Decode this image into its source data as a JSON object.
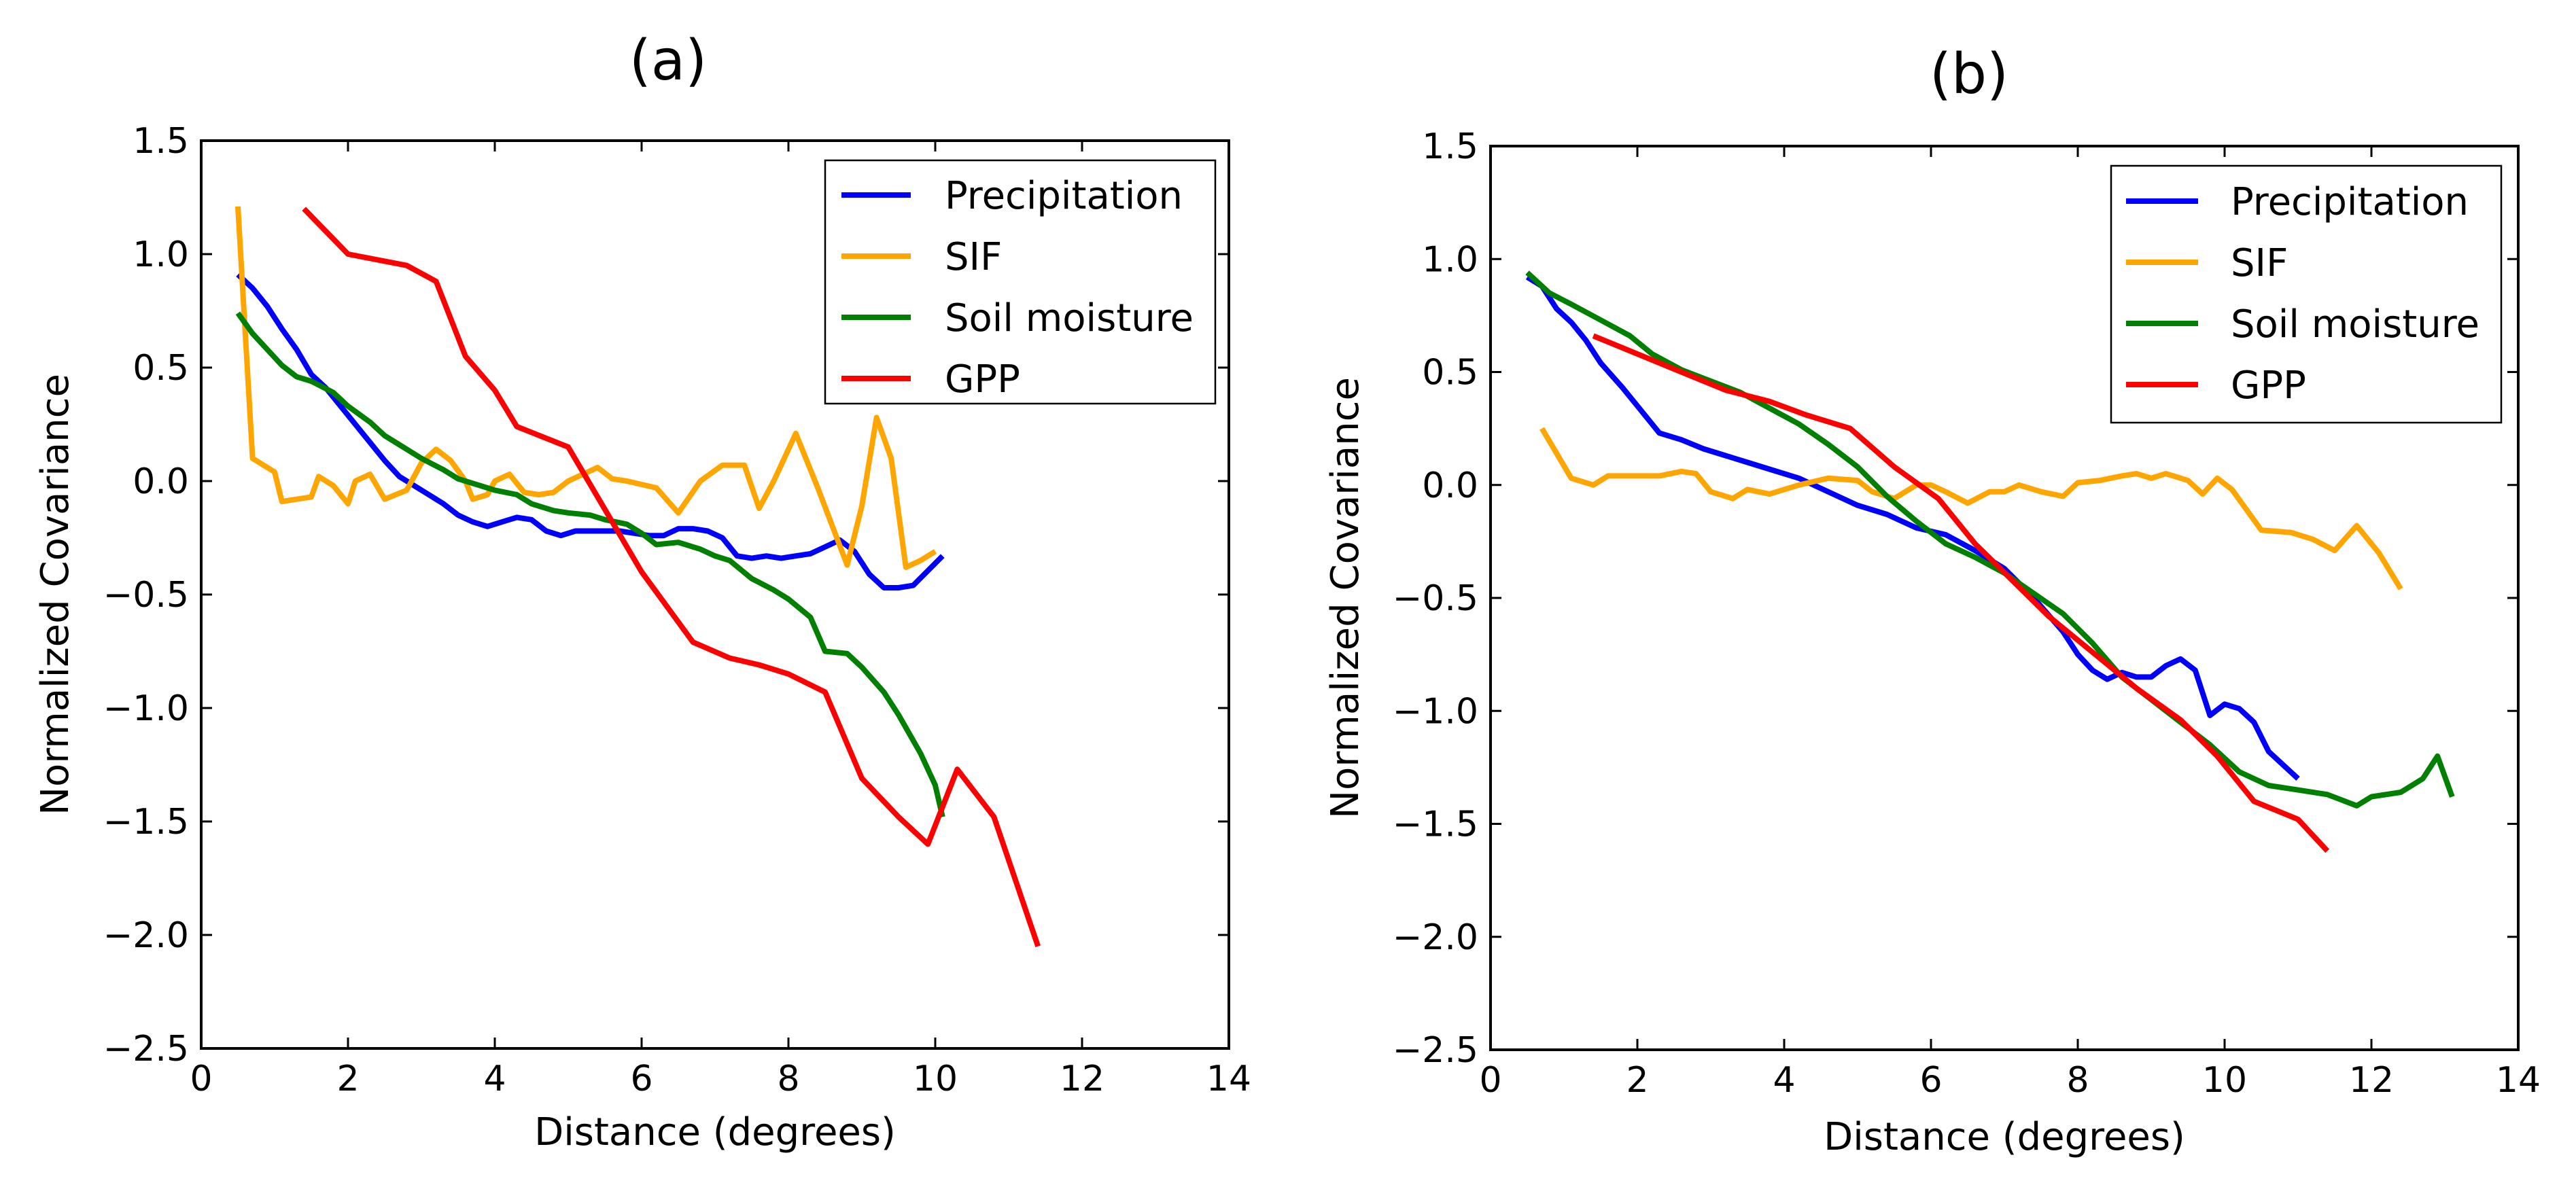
{
  "chart_data": [
    {
      "type": "line",
      "title": "(a)",
      "xlabel": "Distance (degrees)",
      "ylabel": "Normalized Covariance",
      "xlim": [
        0,
        14
      ],
      "ylim": [
        -2.5,
        1.5
      ],
      "xticks": [
        0,
        2,
        4,
        6,
        8,
        10,
        12,
        14
      ],
      "xtick_labels": [
        "0",
        "2",
        "4",
        "6",
        "8",
        "10",
        "12",
        "14"
      ],
      "yticks": [
        -2.5,
        -2.0,
        -1.5,
        -1.0,
        -0.5,
        0.0,
        0.5,
        1.0,
        1.5
      ],
      "ytick_labels": [
        "−2.5",
        "−2.0",
        "−1.5",
        "−1.0",
        "−0.5",
        "0.0",
        "0.5",
        "1.0",
        "1.5"
      ],
      "legend_position": "top-right",
      "series": [
        {
          "name": "Precipitation",
          "color": "#0000ff",
          "x": [
            0.5,
            0.7,
            0.9,
            1.1,
            1.3,
            1.5,
            1.7,
            1.9,
            2.1,
            2.3,
            2.5,
            2.7,
            2.9,
            3.1,
            3.3,
            3.5,
            3.7,
            3.9,
            4.1,
            4.3,
            4.5,
            4.7,
            4.9,
            5.1,
            5.3,
            5.5,
            5.7,
            5.9,
            6.1,
            6.3,
            6.5,
            6.7,
            6.9,
            7.1,
            7.3,
            7.5,
            7.7,
            7.9,
            8.1,
            8.3,
            8.5,
            8.7,
            8.9,
            9.1,
            9.3,
            9.5,
            9.7,
            10.1
          ],
          "y": [
            0.91,
            0.85,
            0.77,
            0.67,
            0.58,
            0.47,
            0.41,
            0.33,
            0.25,
            0.17,
            0.09,
            0.02,
            -0.02,
            -0.06,
            -0.1,
            -0.15,
            -0.18,
            -0.2,
            -0.18,
            -0.16,
            -0.17,
            -0.22,
            -0.24,
            -0.22,
            -0.22,
            -0.22,
            -0.22,
            -0.23,
            -0.24,
            -0.24,
            -0.21,
            -0.21,
            -0.22,
            -0.25,
            -0.33,
            -0.34,
            -0.33,
            -0.34,
            -0.33,
            -0.32,
            -0.29,
            -0.26,
            -0.31,
            -0.41,
            -0.47,
            -0.47,
            -0.46,
            -0.33
          ]
        },
        {
          "name": "SIF",
          "color": "#ffa500",
          "x": [
            0.5,
            0.7,
            1.0,
            1.1,
            1.3,
            1.5,
            1.6,
            1.8,
            2.0,
            2.1,
            2.3,
            2.5,
            2.8,
            3.0,
            3.2,
            3.4,
            3.6,
            3.7,
            3.9,
            4.0,
            4.2,
            4.4,
            4.6,
            4.8,
            5.0,
            5.2,
            5.4,
            5.6,
            5.8,
            6.2,
            6.5,
            6.8,
            7.1,
            7.4,
            7.6,
            7.8,
            8.1,
            8.4,
            8.6,
            8.8,
            9.0,
            9.2,
            9.4,
            9.6,
            9.8,
            10.0
          ],
          "y": [
            1.21,
            0.1,
            0.04,
            -0.09,
            -0.08,
            -0.07,
            0.02,
            -0.02,
            -0.1,
            0.0,
            0.03,
            -0.08,
            -0.04,
            0.08,
            0.14,
            0.09,
            0.0,
            -0.08,
            -0.06,
            0.0,
            0.03,
            -0.05,
            -0.06,
            -0.05,
            0.0,
            0.03,
            0.06,
            0.01,
            0.0,
            -0.03,
            -0.14,
            0.0,
            0.07,
            0.07,
            -0.12,
            0.0,
            0.21,
            -0.03,
            -0.2,
            -0.37,
            -0.11,
            0.28,
            0.1,
            -0.38,
            -0.35,
            -0.31
          ]
        },
        {
          "name": "Soil moisture",
          "color": "#008000",
          "x": [
            0.5,
            0.7,
            0.9,
            1.1,
            1.3,
            1.5,
            1.8,
            2.0,
            2.3,
            2.5,
            2.8,
            3.0,
            3.3,
            3.5,
            3.8,
            4.0,
            4.3,
            4.5,
            4.8,
            5.0,
            5.3,
            5.5,
            5.8,
            6.0,
            6.2,
            6.5,
            6.8,
            7.0,
            7.2,
            7.5,
            7.8,
            8.0,
            8.3,
            8.5,
            8.8,
            9.0,
            9.3,
            9.5,
            9.8,
            10.0,
            10.1
          ],
          "y": [
            0.74,
            0.65,
            0.58,
            0.51,
            0.46,
            0.44,
            0.39,
            0.33,
            0.26,
            0.2,
            0.14,
            0.1,
            0.05,
            0.01,
            -0.02,
            -0.04,
            -0.06,
            -0.1,
            -0.13,
            -0.14,
            -0.15,
            -0.17,
            -0.19,
            -0.23,
            -0.28,
            -0.27,
            -0.3,
            -0.33,
            -0.35,
            -0.43,
            -0.48,
            -0.52,
            -0.6,
            -0.75,
            -0.76,
            -0.82,
            -0.93,
            -1.03,
            -1.2,
            -1.34,
            -1.48
          ]
        },
        {
          "name": "GPP",
          "color": "#ff0000",
          "x": [
            1.4,
            2.0,
            2.8,
            3.2,
            3.6,
            4.0,
            4.3,
            5.0,
            5.4,
            6.0,
            6.7,
            7.2,
            7.6,
            8.0,
            8.5,
            9.0,
            9.5,
            9.9,
            10.3,
            10.8,
            11.4
          ],
          "y": [
            1.2,
            1.0,
            0.95,
            0.88,
            0.55,
            0.4,
            0.24,
            0.15,
            -0.07,
            -0.4,
            -0.71,
            -0.78,
            -0.81,
            -0.85,
            -0.93,
            -1.31,
            -1.48,
            -1.6,
            -1.27,
            -1.48,
            -2.05
          ]
        }
      ]
    },
    {
      "type": "line",
      "title": "(b)",
      "xlabel": "Distance (degrees)",
      "ylabel": "Normalized Covariance",
      "xlim": [
        0,
        14
      ],
      "ylim": [
        -2.5,
        1.5
      ],
      "xticks": [
        0,
        2,
        4,
        6,
        8,
        10,
        12,
        14
      ],
      "xtick_labels": [
        "0",
        "2",
        "4",
        "6",
        "8",
        "10",
        "12",
        "14"
      ],
      "yticks": [
        -2.5,
        -2.0,
        -1.5,
        -1.0,
        -0.5,
        0.0,
        0.5,
        1.0,
        1.5
      ],
      "ytick_labels": [
        "−2.5",
        "−2.0",
        "−1.5",
        "−1.0",
        "−0.5",
        "0.0",
        "0.5",
        "1.0",
        "1.5"
      ],
      "legend_position": "top-right",
      "series": [
        {
          "name": "Precipitation",
          "color": "#0000ff",
          "x": [
            0.5,
            0.7,
            0.9,
            1.1,
            1.3,
            1.5,
            1.8,
            2.0,
            2.3,
            2.6,
            2.9,
            3.2,
            3.5,
            3.8,
            4.2,
            4.6,
            5.0,
            5.4,
            5.8,
            6.2,
            6.6,
            7.0,
            7.4,
            7.8,
            8.0,
            8.2,
            8.4,
            8.6,
            8.8,
            9.0,
            9.2,
            9.4,
            9.6,
            9.8,
            10.0,
            10.2,
            10.4,
            10.6,
            11.0
          ],
          "y": [
            0.92,
            0.88,
            0.78,
            0.72,
            0.64,
            0.54,
            0.43,
            0.35,
            0.23,
            0.2,
            0.16,
            0.13,
            0.1,
            0.07,
            0.03,
            -0.03,
            -0.09,
            -0.13,
            -0.19,
            -0.22,
            -0.29,
            -0.37,
            -0.5,
            -0.65,
            -0.75,
            -0.82,
            -0.86,
            -0.83,
            -0.85,
            -0.85,
            -0.8,
            -0.77,
            -0.82,
            -1.02,
            -0.97,
            -0.99,
            -1.05,
            -1.18,
            -1.3
          ]
        },
        {
          "name": "SIF",
          "color": "#ffa500",
          "x": [
            0.7,
            1.1,
            1.4,
            1.6,
            2.0,
            2.3,
            2.6,
            2.8,
            3.0,
            3.3,
            3.5,
            3.8,
            4.2,
            4.6,
            5.0,
            5.2,
            5.5,
            5.8,
            6.0,
            6.2,
            6.5,
            6.8,
            7.0,
            7.2,
            7.5,
            7.8,
            8.0,
            8.3,
            8.6,
            8.8,
            9.0,
            9.2,
            9.5,
            9.7,
            9.9,
            10.1,
            10.5,
            10.9,
            11.2,
            11.5,
            11.8,
            12.1,
            12.4
          ],
          "y": [
            0.25,
            0.03,
            0.0,
            0.04,
            0.04,
            0.04,
            0.06,
            0.05,
            -0.03,
            -0.06,
            -0.02,
            -0.04,
            0.0,
            0.03,
            0.02,
            -0.03,
            -0.06,
            0.0,
            0.0,
            -0.03,
            -0.08,
            -0.03,
            -0.03,
            0.0,
            -0.03,
            -0.05,
            0.01,
            0.02,
            0.04,
            0.05,
            0.03,
            0.05,
            0.02,
            -0.04,
            0.03,
            -0.02,
            -0.2,
            -0.21,
            -0.24,
            -0.29,
            -0.18,
            -0.3,
            -0.46
          ]
        },
        {
          "name": "Soil moisture",
          "color": "#008000",
          "x": [
            0.5,
            0.8,
            1.1,
            1.5,
            1.9,
            2.2,
            2.6,
            3.0,
            3.4,
            3.8,
            4.2,
            4.6,
            5.0,
            5.4,
            5.8,
            6.2,
            6.6,
            7.0,
            7.4,
            7.8,
            8.2,
            8.6,
            9.0,
            9.4,
            9.8,
            10.2,
            10.6,
            11.0,
            11.4,
            11.8,
            12.0,
            12.4,
            12.7,
            12.9,
            13.1
          ],
          "y": [
            0.94,
            0.85,
            0.8,
            0.73,
            0.66,
            0.58,
            0.51,
            0.46,
            0.41,
            0.34,
            0.27,
            0.18,
            0.08,
            -0.05,
            -0.16,
            -0.26,
            -0.32,
            -0.39,
            -0.48,
            -0.57,
            -0.7,
            -0.85,
            -0.95,
            -1.05,
            -1.15,
            -1.27,
            -1.33,
            -1.35,
            -1.37,
            -1.42,
            -1.38,
            -1.36,
            -1.3,
            -1.2,
            -1.38
          ]
        },
        {
          "name": "GPP",
          "color": "#ff0000",
          "x": [
            1.4,
            2.0,
            2.6,
            3.2,
            3.8,
            4.3,
            4.9,
            5.5,
            6.1,
            6.6,
            7.1,
            7.6,
            8.2,
            8.8,
            9.4,
            9.9,
            10.4,
            11.0,
            11.4
          ],
          "y": [
            0.66,
            0.58,
            0.5,
            0.42,
            0.37,
            0.31,
            0.25,
            0.08,
            -0.06,
            -0.26,
            -0.42,
            -0.58,
            -0.74,
            -0.9,
            -1.04,
            -1.2,
            -1.4,
            -1.48,
            -1.62
          ]
        }
      ]
    }
  ]
}
